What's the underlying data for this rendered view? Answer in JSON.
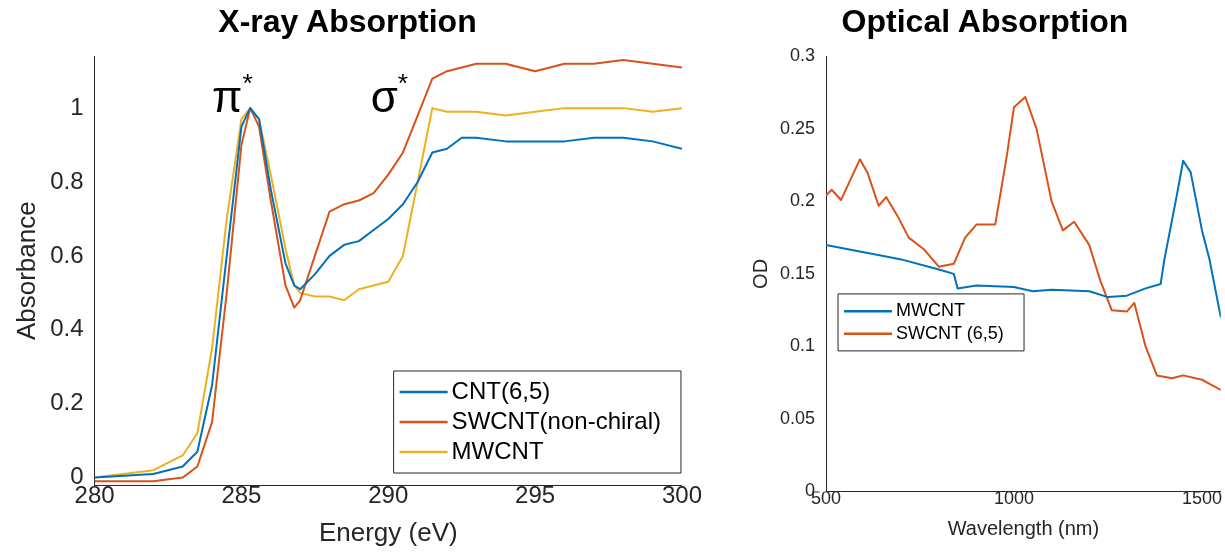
{
  "chart_data": [
    {
      "type": "line",
      "title": "X-ray Absorption",
      "xlabel": "Energy (eV)",
      "ylabel": "Absorbance",
      "xlim": [
        280,
        300
      ],
      "xticks": [
        280,
        285,
        290,
        295,
        300
      ],
      "ylim": [
        -0.02,
        1.14
      ],
      "yticks": [
        0,
        0.2,
        0.4,
        0.6,
        0.8,
        1
      ],
      "legend": "bottom right",
      "grid": false,
      "x": [
        280,
        282,
        283,
        283.5,
        284,
        284.5,
        285,
        285.3,
        285.6,
        286,
        286.5,
        286.8,
        287,
        287.5,
        288,
        288.5,
        289,
        289.5,
        290,
        290.5,
        291,
        291.5,
        292,
        292.5,
        293,
        294,
        295,
        296,
        297,
        298,
        299,
        300
      ],
      "series": [
        {
          "name": "CNT(6,5)",
          "color": "#0072bd",
          "values": [
            0,
            0.01,
            0.03,
            0.07,
            0.25,
            0.6,
            0.95,
            1.0,
            0.97,
            0.78,
            0.58,
            0.52,
            0.51,
            0.55,
            0.6,
            0.63,
            0.64,
            0.67,
            0.7,
            0.74,
            0.8,
            0.88,
            0.89,
            0.92,
            0.92,
            0.91,
            0.91,
            0.91,
            0.92,
            0.92,
            0.91,
            0.89
          ]
        },
        {
          "name": "SWCNT(non-chiral)",
          "color": "#d95319",
          "values": [
            -0.01,
            -0.01,
            0.0,
            0.03,
            0.15,
            0.5,
            0.9,
            1.0,
            0.95,
            0.75,
            0.52,
            0.46,
            0.48,
            0.6,
            0.72,
            0.74,
            0.75,
            0.77,
            0.82,
            0.88,
            0.98,
            1.08,
            1.1,
            1.11,
            1.12,
            1.12,
            1.1,
            1.12,
            1.12,
            1.13,
            1.12,
            1.11
          ]
        },
        {
          "name": "MWCNT",
          "color": "#edb120",
          "values": [
            0,
            0.02,
            0.06,
            0.12,
            0.35,
            0.7,
            0.97,
            1.0,
            0.97,
            0.82,
            0.62,
            0.52,
            0.5,
            0.49,
            0.49,
            0.48,
            0.51,
            0.52,
            0.53,
            0.6,
            0.8,
            1.0,
            0.99,
            0.99,
            0.99,
            0.98,
            0.99,
            1.0,
            1.0,
            1.0,
            0.99,
            1.0
          ]
        }
      ],
      "annotations": [
        "π$^{*}$",
        "σ$^{*}$"
      ]
    },
    {
      "type": "line",
      "title": "Optical Absorption",
      "xlabel": "Wavelength (nm)",
      "ylabel": "OD",
      "xlim": [
        500,
        1550
      ],
      "xticks": [
        500,
        1000,
        1500
      ],
      "ylim": [
        0,
        0.3
      ],
      "yticks": [
        0,
        0.05,
        0.1,
        0.15,
        0.2,
        0.25,
        0.3
      ],
      "legend": "left",
      "grid": false,
      "series": [
        {
          "name": "MWCNT",
          "color": "#0072bd",
          "x": [
            500,
            600,
            700,
            800,
            840,
            850,
            900,
            1000,
            1050,
            1100,
            1200,
            1250,
            1300,
            1350,
            1390,
            1400,
            1430,
            1450,
            1470,
            1500,
            1520,
            1550
          ],
          "values": [
            0.17,
            0.165,
            0.16,
            0.153,
            0.15,
            0.14,
            0.142,
            0.141,
            0.138,
            0.139,
            0.138,
            0.134,
            0.135,
            0.14,
            0.143,
            0.16,
            0.2,
            0.228,
            0.22,
            0.18,
            0.16,
            0.12
          ]
        },
        {
          "name": "SWCNT (6,5)",
          "color": "#d95319",
          "x": [
            500,
            515,
            540,
            590,
            610,
            640,
            660,
            690,
            720,
            760,
            800,
            840,
            870,
            900,
            950,
            980,
            1000,
            1030,
            1060,
            1100,
            1130,
            1160,
            1200,
            1230,
            1260,
            1300,
            1320,
            1350,
            1380,
            1420,
            1450,
            1500,
            1550
          ],
          "values": [
            0.204,
            0.208,
            0.201,
            0.229,
            0.22,
            0.197,
            0.203,
            0.19,
            0.175,
            0.167,
            0.155,
            0.157,
            0.175,
            0.184,
            0.184,
            0.23,
            0.265,
            0.272,
            0.25,
            0.2,
            0.18,
            0.186,
            0.17,
            0.145,
            0.125,
            0.124,
            0.13,
            0.1,
            0.08,
            0.078,
            0.08,
            0.077,
            0.07
          ]
        }
      ]
    }
  ]
}
